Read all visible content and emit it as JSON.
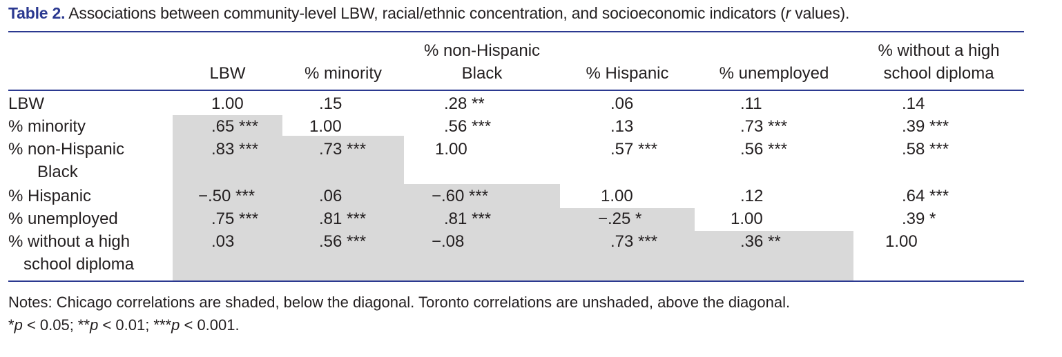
{
  "caption": {
    "label": "Table 2.",
    "text_before": "Associations between community-level LBW, racial/ethnic concentration, and socioeconomic indicators (",
    "italic": "r",
    "text_after": " values)."
  },
  "table": {
    "columns": [
      {
        "line1": "",
        "line2": "LBW"
      },
      {
        "line1": "",
        "line2": "% minority"
      },
      {
        "line1": "% non-Hispanic",
        "line2": "Black"
      },
      {
        "line1": "",
        "line2": "% Hispanic"
      },
      {
        "line1": "",
        "line2": "% unemployed"
      },
      {
        "line1": "% without a high",
        "line2": "school diploma"
      }
    ],
    "rows": [
      {
        "line1": "LBW",
        "line2": "",
        "cells": [
          "1.00",
          ".15",
          ".28 **",
          ".06",
          ".11",
          ".14"
        ]
      },
      {
        "line1": "% minority",
        "line2": "",
        "cells": [
          ".65 ***",
          "1.00",
          ".56 ***",
          ".13",
          ".73 ***",
          ".39 ***"
        ]
      },
      {
        "line1": "% non-Hispanic",
        "line2": "Black",
        "cells": [
          ".83 ***",
          ".73 ***",
          "1.00",
          ".57 ***",
          ".56 ***",
          ".58 ***"
        ]
      },
      {
        "line1": "% Hispanic",
        "line2": "",
        "cells": [
          "−.50 ***",
          ".06",
          "−.60 ***",
          "1.00",
          ".12",
          ".64 ***"
        ]
      },
      {
        "line1": "% unemployed",
        "line2": "",
        "cells": [
          ".75 ***",
          ".81 ***",
          ".81 ***",
          "−.25 *",
          "1.00",
          ".39 *"
        ]
      },
      {
        "line1": "% without a high",
        "line2": "school diploma",
        "cells": [
          ".03",
          ".56 ***",
          "−.08",
          ".73 ***",
          ".36 **",
          "1.00"
        ]
      }
    ],
    "shade_color": "#d9d9d9",
    "rule_color": "#2b3990"
  },
  "notes": {
    "line1": "Notes: Chicago correlations are shaded, below the diagonal. Toronto correlations are unshaded, above the diagonal.",
    "line2_parts": [
      "*",
      "p",
      " < 0.05; **",
      "p",
      " < 0.01; ***",
      "p",
      " < 0.001."
    ]
  }
}
